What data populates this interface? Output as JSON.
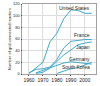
{
  "chart_data": {
    "type": "line",
    "y_label": "Number of grid-connected reactors",
    "x": [
      1955,
      1960,
      1965,
      1970,
      1975,
      1980,
      1985,
      1990,
      1995,
      2000,
      2005
    ],
    "series": [
      {
        "name": "United States",
        "color": "#3fa9c9",
        "values": [
          null,
          1,
          10,
          20,
          55,
          70,
          95,
          110,
          109,
          104,
          104
        ]
      },
      {
        "name": "France",
        "color": "#3fa9c9",
        "values": [
          null,
          2,
          8,
          9,
          12,
          25,
          45,
          56,
          58,
          59,
          59
        ]
      },
      {
        "name": "Japan",
        "color": "#3fa9c9",
        "values": [
          null,
          null,
          1,
          3,
          10,
          22,
          33,
          41,
          50,
          53,
          55
        ]
      },
      {
        "name": "Germany",
        "color": "#3fa9c9",
        "values": [
          null,
          null,
          2,
          6,
          10,
          14,
          19,
          21,
          20,
          19,
          17
        ]
      },
      {
        "name": "South Korea",
        "color": "#3fa9c9",
        "values": [
          null,
          null,
          null,
          null,
          null,
          1,
          5,
          9,
          11,
          16,
          20
        ]
      }
    ],
    "xlim": [
      1955,
      2008
    ],
    "xticks": [
      1960,
      1970,
      1980,
      1990,
      2000
    ],
    "ylim": [
      0,
      120
    ],
    "yticks": [
      0,
      20,
      40,
      60,
      80,
      100,
      120
    ],
    "grid": true
  }
}
